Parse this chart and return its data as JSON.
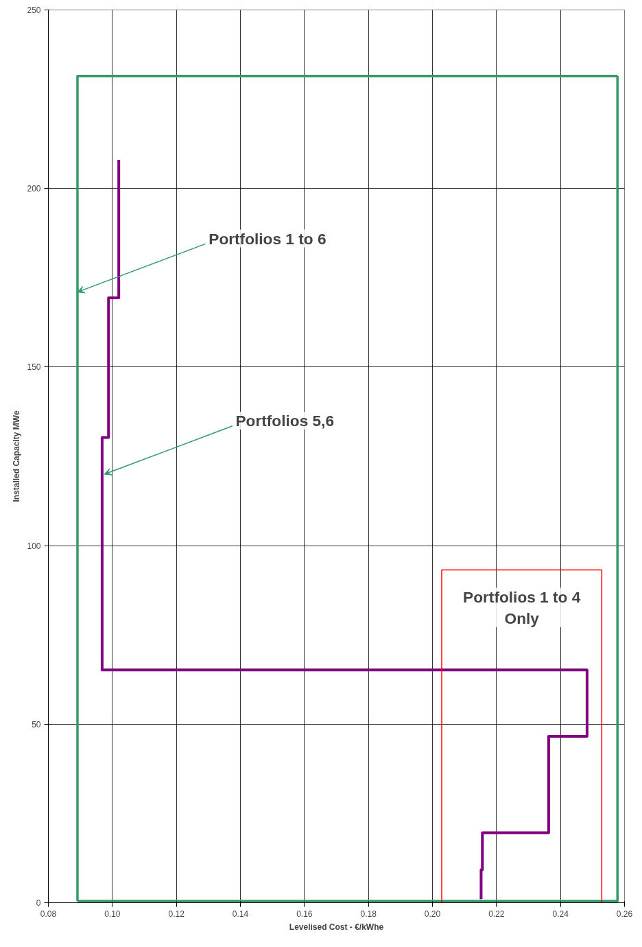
{
  "chart_data": {
    "type": "line",
    "xlabel": "Levelised Cost - €/kWhe",
    "ylabel": "Installed Capacity MWe",
    "xlim": [
      0.08,
      0.26
    ],
    "ylim": [
      0,
      250
    ],
    "xticks": [
      {
        "value": 0.08,
        "label": "0.08"
      },
      {
        "value": 0.1,
        "label": "0.10"
      },
      {
        "value": 0.12,
        "label": "0.12"
      },
      {
        "value": 0.14,
        "label": "0.14"
      },
      {
        "value": 0.16,
        "label": "0.16"
      },
      {
        "value": 0.18,
        "label": "0.18"
      },
      {
        "value": 0.2,
        "label": "0.20"
      },
      {
        "value": 0.22,
        "label": "0.22"
      },
      {
        "value": 0.24,
        "label": "0.24"
      },
      {
        "value": 0.26,
        "label": "0.26"
      }
    ],
    "yticks": [
      0,
      50,
      100,
      150,
      200,
      250
    ],
    "grid": true,
    "marker": "none",
    "line_style": "solid",
    "series": [
      {
        "color": "#800080",
        "x": [
          0.102,
          0.102,
          0.0988,
          0.0988,
          0.0968,
          0.0968,
          0.2483,
          0.2483,
          0.2363,
          0.2363,
          0.2156,
          0.2156,
          0.2152,
          0.2152
        ],
        "values": [
          208,
          169.4,
          169.4,
          130.3,
          130.3,
          65.2,
          65.2,
          46.6,
          46.6,
          19.6,
          19.6,
          9.2,
          9.2,
          1
        ]
      },
      {
        "color": "#339966",
        "x": [
          0.0891,
          0.0891,
          0.2578
        ],
        "values": [
          0.5,
          231.5,
          231.5
        ]
      },
      {
        "color": "#339966",
        "x": [
          0.2578,
          0.2578,
          0.0891
        ],
        "values": [
          231.5,
          0.5,
          0.5
        ]
      },
      {
        "color": "#ff0000",
        "x": [
          0.2029,
          0.2029,
          0.2529,
          0.2529
        ],
        "values": [
          0,
          93.2,
          93.2,
          0
        ]
      }
    ],
    "annotations": [
      {
        "text": "Portfolios 1 to 6",
        "x": 0.0891,
        "y": 171
      },
      {
        "text": "Portfolios 5,6",
        "x": 0.0975,
        "y": 120
      },
      "Portfolios 1 to 4\nOnly"
    ]
  }
}
